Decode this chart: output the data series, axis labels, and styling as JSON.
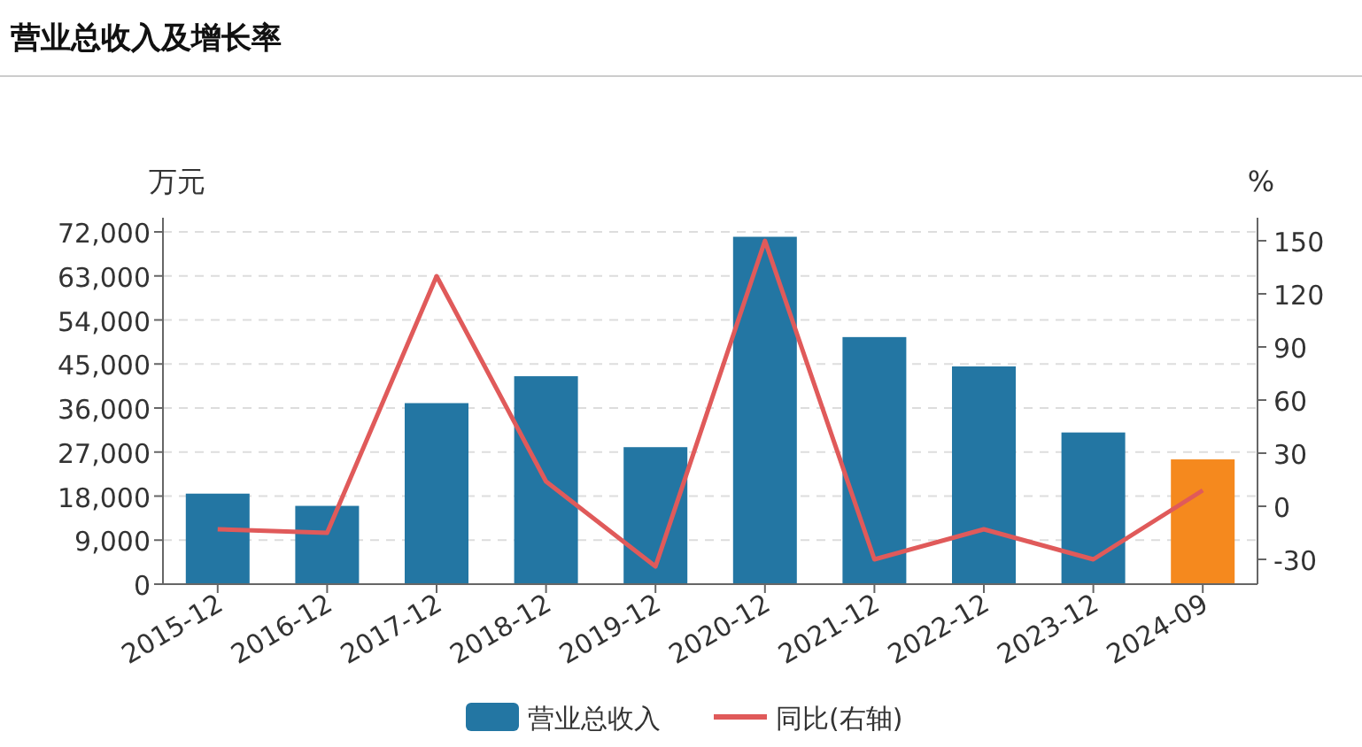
{
  "chart_data": {
    "type": "bar",
    "title": "营业总收入及增长率",
    "ylabel": "万元",
    "y2label": "%",
    "categories": [
      "2015-12",
      "2016-12",
      "2017-12",
      "2018-12",
      "2019-12",
      "2020-12",
      "2021-12",
      "2022-12",
      "2023-12",
      "2024-09"
    ],
    "series": [
      {
        "name": "营业总收入",
        "color": "#2376a3",
        "colors": [
          "#2376a3",
          "#2376a3",
          "#2376a3",
          "#2376a3",
          "#2376a3",
          "#2376a3",
          "#2376a3",
          "#2376a3",
          "#2376a3",
          "#f5891e"
        ],
        "values": [
          18500,
          16000,
          37000,
          42500,
          28000,
          71000,
          50500,
          44500,
          31000,
          25500
        ]
      },
      {
        "name": "同比(右轴)",
        "type": "line",
        "axis": "y2",
        "color": "#e05a5a",
        "values": [
          -13,
          -15,
          130,
          14,
          -34,
          150,
          -30,
          -13,
          -30,
          9
        ]
      }
    ],
    "ylim": [
      0,
      72000
    ],
    "yticks": [
      0,
      {
        "value": 9000,
        "label": "9,000"
      },
      {
        "value": 18000,
        "label": "18,000"
      },
      {
        "value": 27000,
        "label": "27,000"
      },
      {
        "value": 36000,
        "label": "36,000"
      },
      {
        "value": 45000,
        "label": "45,000"
      },
      {
        "value": 54000,
        "label": "54,000"
      },
      {
        "value": 63000,
        "label": "63,000"
      },
      {
        "value": 72000,
        "label": "72,000"
      }
    ],
    "y2lim": [
      -44,
      155
    ],
    "y2ticks": [
      -30,
      0,
      30,
      60,
      90,
      120,
      150
    ],
    "grid": "y",
    "legend": "bottom"
  }
}
